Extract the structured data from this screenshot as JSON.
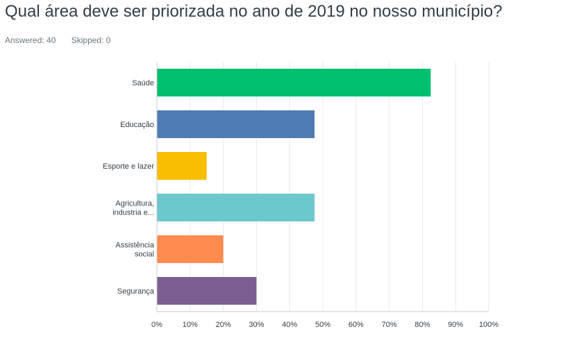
{
  "question": {
    "title": "Qual área deve ser priorizada no ano de 2019 no nosso município?",
    "answered_label": "Answered: 40",
    "skipped_label": "Skipped: 0"
  },
  "chart_data": {
    "type": "bar",
    "orientation": "horizontal",
    "categories": [
      [
        "Saúde"
      ],
      [
        "Educação"
      ],
      [
        "Esporte e lazer"
      ],
      [
        "Agricultura,",
        "industria e..."
      ],
      [
        "Assistência",
        "social"
      ],
      [
        "Segurança"
      ]
    ],
    "values": [
      82.5,
      47.5,
      15,
      47.5,
      20,
      30
    ],
    "colors": [
      "#00bf6f",
      "#507cb6",
      "#f9be00",
      "#6bc8cd",
      "#ff8b4f",
      "#7d5e90"
    ],
    "x_ticks": [
      "0%",
      "10%",
      "20%",
      "30%",
      "40%",
      "50%",
      "60%",
      "70%",
      "80%",
      "90%",
      "100%"
    ],
    "xlim": [
      0,
      100
    ],
    "grid": true,
    "title": "",
    "xlabel": "",
    "ylabel": ""
  }
}
